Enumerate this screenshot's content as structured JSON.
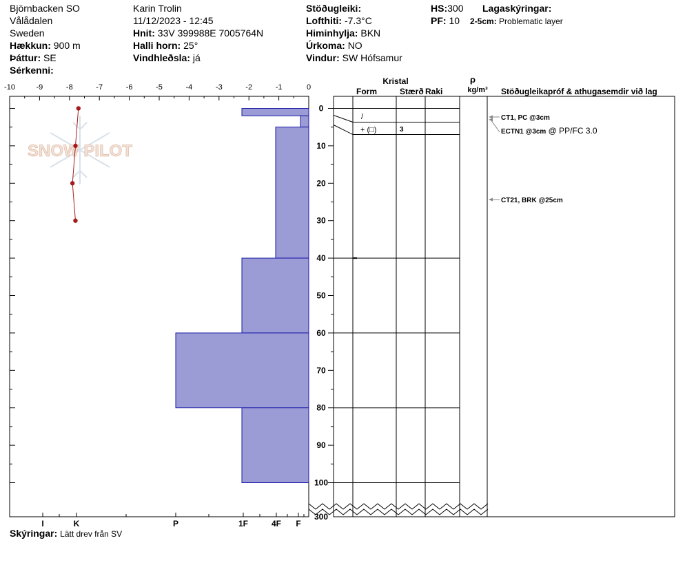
{
  "header": {
    "location": "Björnbacken SO",
    "region": "Vålådalen",
    "country": "Sweden",
    "elevation_label": "Hækkun:",
    "elevation_value": "900 m",
    "aspect_label": "Þáttur:",
    "aspect_value": "SE",
    "features_label": "Sérkenni:",
    "observer": "Karin  Trolin",
    "datetime": "11/12/2023 - 12:45",
    "coords_label": "Hnit:",
    "coords_value": "33V 399988E 7005764N",
    "slope_label": "Halli horn:",
    "slope_value": "25°",
    "windload_label": "Vindhleðsla:",
    "windload_value": "já",
    "stability_label": "Stöðugleiki:",
    "airtemp_label": "Lofthiti:",
    "airtemp_value": "-7.3°C",
    "sky_label": "Himinhylja:",
    "sky_value": "BKN",
    "precip_label": "Úrkoma:",
    "precip_value": "NO",
    "wind_label": "Vindur:",
    "wind_value": "SW Hófsamur",
    "hs_label": "HS:",
    "hs_value": "300",
    "pf_label": "PF:",
    "pf_value": "10",
    "legend_label": "Lagaskýringar:",
    "legend_range": "2-5cm:",
    "legend_text": "Problematic layer"
  },
  "watermark": "SNOW PILOT",
  "footer": {
    "notes_label": "Skýringar:",
    "notes_value": "Lätt drev från SV"
  },
  "table": {
    "kristal": "Kristal",
    "form": "Form",
    "size": "Stærð",
    "wetness": "Raki",
    "rho": "ρ",
    "density_unit": "kg/m³",
    "tests_header": "Stöðugleikapróf & athugasemdir við lag",
    "layer_form": "+ (□)",
    "layer_size": "3",
    "surface_form": "/"
  },
  "tests": [
    {
      "depth": 3,
      "label": "CT1, PC @3cm",
      "extra": ""
    },
    {
      "depth": 3,
      "label": "ECTN1 @3cm",
      "extra": " @ PP/FC 3.0"
    },
    {
      "depth": 25,
      "label": "CT21, BRK @25cm",
      "extra": ""
    }
  ],
  "chart_data": {
    "type": "snow-profile",
    "temp_axis_ticks": [
      "-10",
      "-9",
      "-8",
      "-7",
      "-6",
      "-5",
      "-4",
      "-3",
      "-2",
      "-1",
      "0"
    ],
    "temp_range": [
      -10,
      0
    ],
    "depth_ticks": [
      "0",
      "10",
      "20",
      "30",
      "40",
      "50",
      "60",
      "70",
      "80",
      "90",
      "100",
      "300"
    ],
    "depth_range": [
      0,
      100
    ],
    "depth_bottom_label": "300",
    "hardness_labels": [
      "I",
      "K",
      "P",
      "1F",
      "4F",
      "F"
    ],
    "temperature_profile": [
      {
        "depth": 0,
        "temp": -7.7
      },
      {
        "depth": 10,
        "temp": -7.8
      },
      {
        "depth": 20,
        "temp": -7.9
      },
      {
        "depth": 30,
        "temp": -7.8
      }
    ],
    "hardness_layers": [
      {
        "top": 0,
        "bottom": 2,
        "hardness": "1F"
      },
      {
        "top": 2,
        "bottom": 5,
        "hardness": "F"
      },
      {
        "top": 5,
        "bottom": 40,
        "hardness": "4F"
      },
      {
        "top": 40,
        "bottom": 60,
        "hardness": "1F"
      },
      {
        "top": 60,
        "bottom": 80,
        "hardness": "P"
      },
      {
        "top": 80,
        "bottom": 100,
        "hardness": "1F"
      }
    ],
    "grain_layer_boundaries": [
      0,
      4,
      7,
      40,
      60,
      80,
      100
    ],
    "colors": {
      "layer_fill": "#9b9bd6",
      "layer_stroke": "#1a1aa8",
      "temp_line": "#a51c1c",
      "test_arrow": "#888888"
    }
  }
}
